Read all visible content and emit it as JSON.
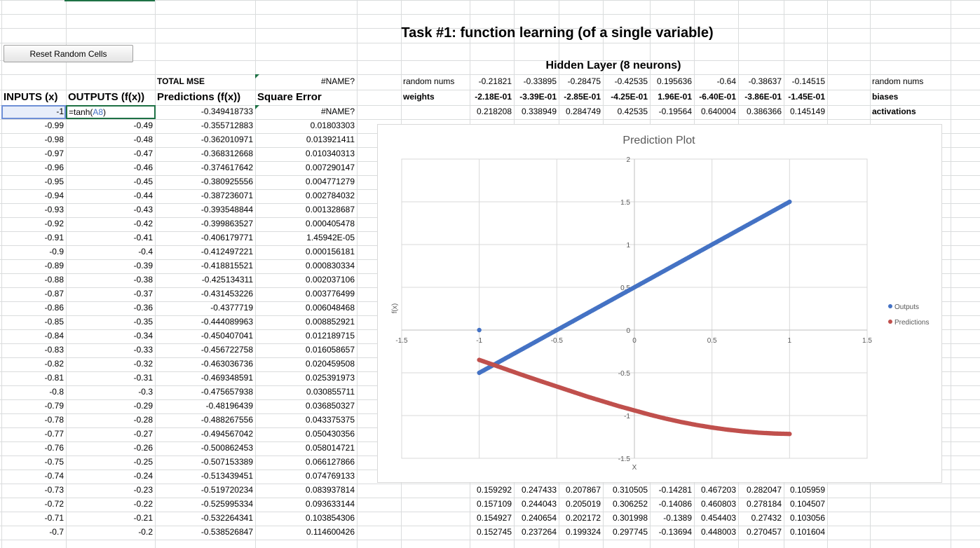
{
  "title": "Task #1: function learning (of a single variable)",
  "reset_button": "Reset Random Cells",
  "total_mse_label": "TOTAL MSE",
  "total_mse_value": "#NAME?",
  "headers": {
    "inputs": "INPUTS (x)",
    "outputs": "OUTPUTS (f(x))",
    "predictions": "Predictions (f(x))",
    "square_error": "Square Error"
  },
  "edit_cell": {
    "input": "-1",
    "formula_prefix": "=tanh(",
    "formula_ref": "A8",
    "formula_suffix": ")"
  },
  "first_row": {
    "prediction": "-0.349418733",
    "square_error": "#NAME?"
  },
  "rows": [
    [
      "-0.99",
      "-0.49",
      "-0.355712883",
      "0.01803303"
    ],
    [
      "-0.98",
      "-0.48",
      "-0.362010971",
      "0.013921411"
    ],
    [
      "-0.97",
      "-0.47",
      "-0.368312668",
      "0.010340313"
    ],
    [
      "-0.96",
      "-0.46",
      "-0.374617642",
      "0.007290147"
    ],
    [
      "-0.95",
      "-0.45",
      "-0.380925556",
      "0.004771279"
    ],
    [
      "-0.94",
      "-0.44",
      "-0.387236071",
      "0.002784032"
    ],
    [
      "-0.93",
      "-0.43",
      "-0.393548844",
      "0.001328687"
    ],
    [
      "-0.92",
      "-0.42",
      "-0.399863527",
      "0.000405478"
    ],
    [
      "-0.91",
      "-0.41",
      "-0.406179771",
      "1.45942E-05"
    ],
    [
      "-0.9",
      "-0.4",
      "-0.412497221",
      "0.000156181"
    ],
    [
      "-0.89",
      "-0.39",
      "-0.418815521",
      "0.000830334"
    ],
    [
      "-0.88",
      "-0.38",
      "-0.425134311",
      "0.002037106"
    ],
    [
      "-0.87",
      "-0.37",
      "-0.431453226",
      "0.003776499"
    ],
    [
      "-0.86",
      "-0.36",
      "-0.4377719",
      "0.006048468"
    ],
    [
      "-0.85",
      "-0.35",
      "-0.444089963",
      "0.008852921"
    ],
    [
      "-0.84",
      "-0.34",
      "-0.450407041",
      "0.012189715"
    ],
    [
      "-0.83",
      "-0.33",
      "-0.456722758",
      "0.016058657"
    ],
    [
      "-0.82",
      "-0.32",
      "-0.463036736",
      "0.020459508"
    ],
    [
      "-0.81",
      "-0.31",
      "-0.469348591",
      "0.025391973"
    ],
    [
      "-0.8",
      "-0.3",
      "-0.475657938",
      "0.030855711"
    ],
    [
      "-0.79",
      "-0.29",
      "-0.48196439",
      "0.036850327"
    ],
    [
      "-0.78",
      "-0.28",
      "-0.488267556",
      "0.043375375"
    ],
    [
      "-0.77",
      "-0.27",
      "-0.494567042",
      "0.050430356"
    ],
    [
      "-0.76",
      "-0.26",
      "-0.500862453",
      "0.058014721"
    ],
    [
      "-0.75",
      "-0.25",
      "-0.507153389",
      "0.066127866"
    ],
    [
      "-0.74",
      "-0.24",
      "-0.513439451",
      "0.074769133"
    ],
    [
      "-0.73",
      "-0.23",
      "-0.519720234",
      "0.083937814"
    ],
    [
      "-0.72",
      "-0.22",
      "-0.525995334",
      "0.093633144"
    ],
    [
      "-0.71",
      "-0.21",
      "-0.532264341",
      "0.103854306"
    ],
    [
      "-0.7",
      "-0.2",
      "-0.538526847",
      "0.114600426"
    ]
  ],
  "hidden": {
    "title": "Hidden Layer (8 neurons)",
    "random_label": "random nums",
    "weights_label": "weights",
    "random_label_right": "random nums",
    "biases_label": "biases",
    "activations_label": "activations",
    "random_nums": [
      "-0.21821",
      "-0.33895",
      "-0.28475",
      "-0.42535",
      "0.195636",
      "-0.64",
      "-0.38637",
      "-0.14515"
    ],
    "weights": [
      "-2.18E-01",
      "-3.39E-01",
      "-2.85E-01",
      "-4.25E-01",
      "1.96E-01",
      "-6.40E-01",
      "-3.86E-01",
      "-1.45E-01"
    ],
    "activations": [
      "0.218208",
      "0.338949",
      "0.284749",
      "0.42535",
      "-0.19564",
      "0.640004",
      "0.386366",
      "0.145149"
    ],
    "lower_rows": [
      [
        "0.159292",
        "0.247433",
        "0.207867",
        "0.310505",
        "-0.14281",
        "0.467203",
        "0.282047",
        "0.105959"
      ],
      [
        "0.157109",
        "0.244043",
        "0.205019",
        "0.306252",
        "-0.14086",
        "0.460803",
        "0.278184",
        "0.104507"
      ],
      [
        "0.154927",
        "0.240654",
        "0.202172",
        "0.301998",
        "-0.1389",
        "0.454403",
        "0.27432",
        "0.103056"
      ],
      [
        "0.152745",
        "0.237264",
        "0.199324",
        "0.297745",
        "-0.13694",
        "0.448003",
        "0.270457",
        "0.101604"
      ]
    ]
  },
  "chart_data": {
    "type": "scatter",
    "title": "Prediction Plot",
    "xlabel": "X",
    "ylabel": "f(x)",
    "xlim": [
      -1.5,
      1.5
    ],
    "ylim": [
      -1.5,
      2
    ],
    "xticks": [
      "-1.5",
      "-1",
      "-0.5",
      "0",
      "0.5",
      "1",
      "1.5"
    ],
    "yticks": [
      "-1.5",
      "-1",
      "-0.5",
      "0",
      "0.5",
      "1",
      "1.5",
      "2"
    ],
    "legend_position": "right",
    "series": [
      {
        "name": "Outputs",
        "color": "#4472c4",
        "x_range": [
          -1,
          1
        ],
        "step": 0.01,
        "slope": 1,
        "offset": 0.5,
        "extra_point": [
          -1,
          0
        ]
      },
      {
        "name": "Predictions",
        "color": "#c0504d",
        "points": [
          [
            -1,
            -0.349
          ],
          [
            -0.9,
            -0.412
          ],
          [
            -0.8,
            -0.476
          ],
          [
            -0.7,
            -0.539
          ],
          [
            -0.6,
            -0.6
          ],
          [
            -0.5,
            -0.66
          ],
          [
            -0.4,
            -0.72
          ],
          [
            -0.3,
            -0.78
          ],
          [
            -0.2,
            -0.835
          ],
          [
            -0.1,
            -0.89
          ],
          [
            0,
            -0.94
          ],
          [
            0.1,
            -0.99
          ],
          [
            0.2,
            -1.035
          ],
          [
            0.3,
            -1.075
          ],
          [
            0.4,
            -1.11
          ],
          [
            0.5,
            -1.14
          ],
          [
            0.6,
            -1.165
          ],
          [
            0.7,
            -1.185
          ],
          [
            0.8,
            -1.2
          ],
          [
            0.9,
            -1.21
          ],
          [
            1,
            -1.215
          ]
        ]
      }
    ]
  }
}
